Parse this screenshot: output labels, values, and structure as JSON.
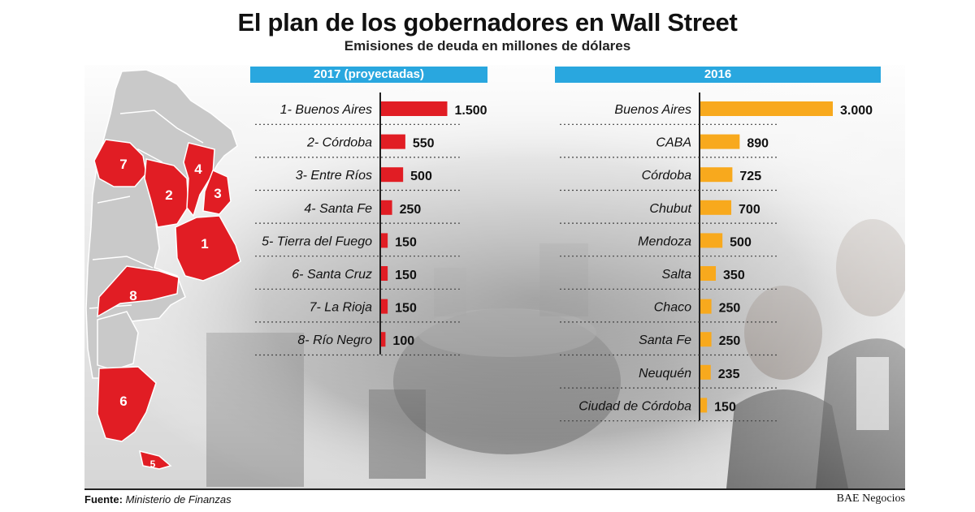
{
  "title": "El plan de los gobernadores en Wall Street",
  "subtitle": "Emisiones de deuda en millones de dólares",
  "colors": {
    "header_bar": "#29a7df",
    "bar_2017": "#e11d24",
    "bar_2016": "#f8a91d",
    "map_gray": "#c9c9c9",
    "map_red": "#e11d24"
  },
  "chart_data": [
    {
      "type": "bar",
      "orientation": "horizontal",
      "title": "2017 (proyectadas)",
      "categories": [
        "1- Buenos Aires",
        "2- Córdoba",
        "3- Entre Ríos",
        "4- Santa Fe",
        "5- Tierra del Fuego",
        "6- Santa Cruz",
        "7- La Rioja",
        "8- Río Negro"
      ],
      "values": [
        1500,
        550,
        500,
        250,
        150,
        150,
        150,
        100
      ],
      "value_labels": [
        "1.500",
        "550",
        "500",
        "250",
        "150",
        "150",
        "150",
        "100"
      ],
      "unit": "millones de dólares",
      "xlim": [
        0,
        3000
      ],
      "bar_color": "#e11d24"
    },
    {
      "type": "bar",
      "orientation": "horizontal",
      "title": "2016",
      "categories": [
        "Buenos Aires",
        "CABA",
        "Córdoba",
        "Chubut",
        "Mendoza",
        "Salta",
        "Chaco",
        "Santa Fe",
        "Neuquén",
        "Ciudad de Córdoba"
      ],
      "values": [
        3000,
        890,
        725,
        700,
        500,
        350,
        250,
        250,
        235,
        150
      ],
      "value_labels": [
        "3.000",
        "890",
        "725",
        "700",
        "500",
        "350",
        "250",
        "250",
        "235",
        "150"
      ],
      "unit": "millones de dólares",
      "xlim": [
        0,
        3000
      ],
      "bar_color": "#f8a91d"
    }
  ],
  "map": {
    "province_labels": [
      "1",
      "2",
      "3",
      "4",
      "5",
      "6",
      "7",
      "8"
    ]
  },
  "footer": {
    "source_label": "Fuente:",
    "source_value": "Ministerio de Finanzas",
    "credit": "BAE Negocios"
  }
}
